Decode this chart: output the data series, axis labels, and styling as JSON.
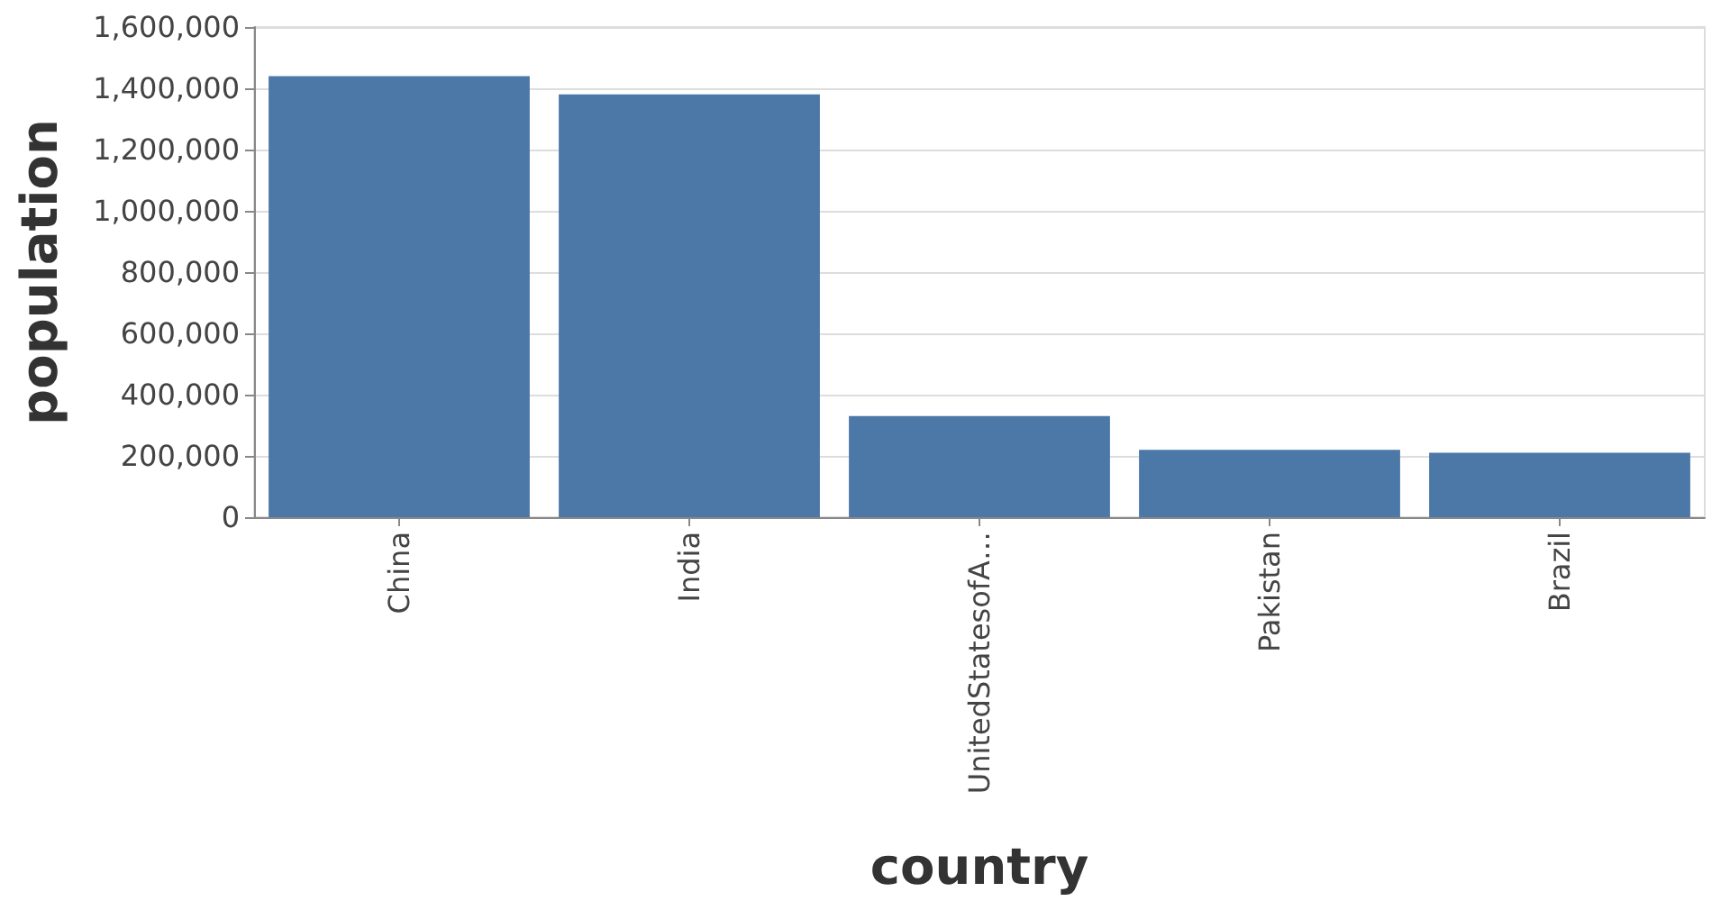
{
  "chart_data": {
    "type": "bar",
    "xlabel": "country",
    "ylabel": "population",
    "categories": [
      "China",
      "India",
      "UnitedStatesofA…",
      "Pakistan",
      "Brazil"
    ],
    "values": [
      1440000,
      1380000,
      330000,
      220000,
      210000
    ],
    "color": "#4c78a8",
    "ylim": [
      0,
      1600000
    ],
    "yticks": [
      0,
      {
        "value": 200000,
        "label": "200,000"
      },
      {
        "value": 400000,
        "label": "400,000"
      },
      {
        "value": 600000,
        "label": "600,000"
      },
      {
        "value": 800000,
        "label": "800,000"
      },
      {
        "value": 1000000,
        "label": "1,000,000"
      },
      {
        "value": 1200000,
        "label": "1,200,000"
      },
      {
        "value": 1400000,
        "label": "1,400,000"
      },
      {
        "value": 1600000,
        "label": "1,600,000"
      }
    ],
    "grid": "y"
  }
}
